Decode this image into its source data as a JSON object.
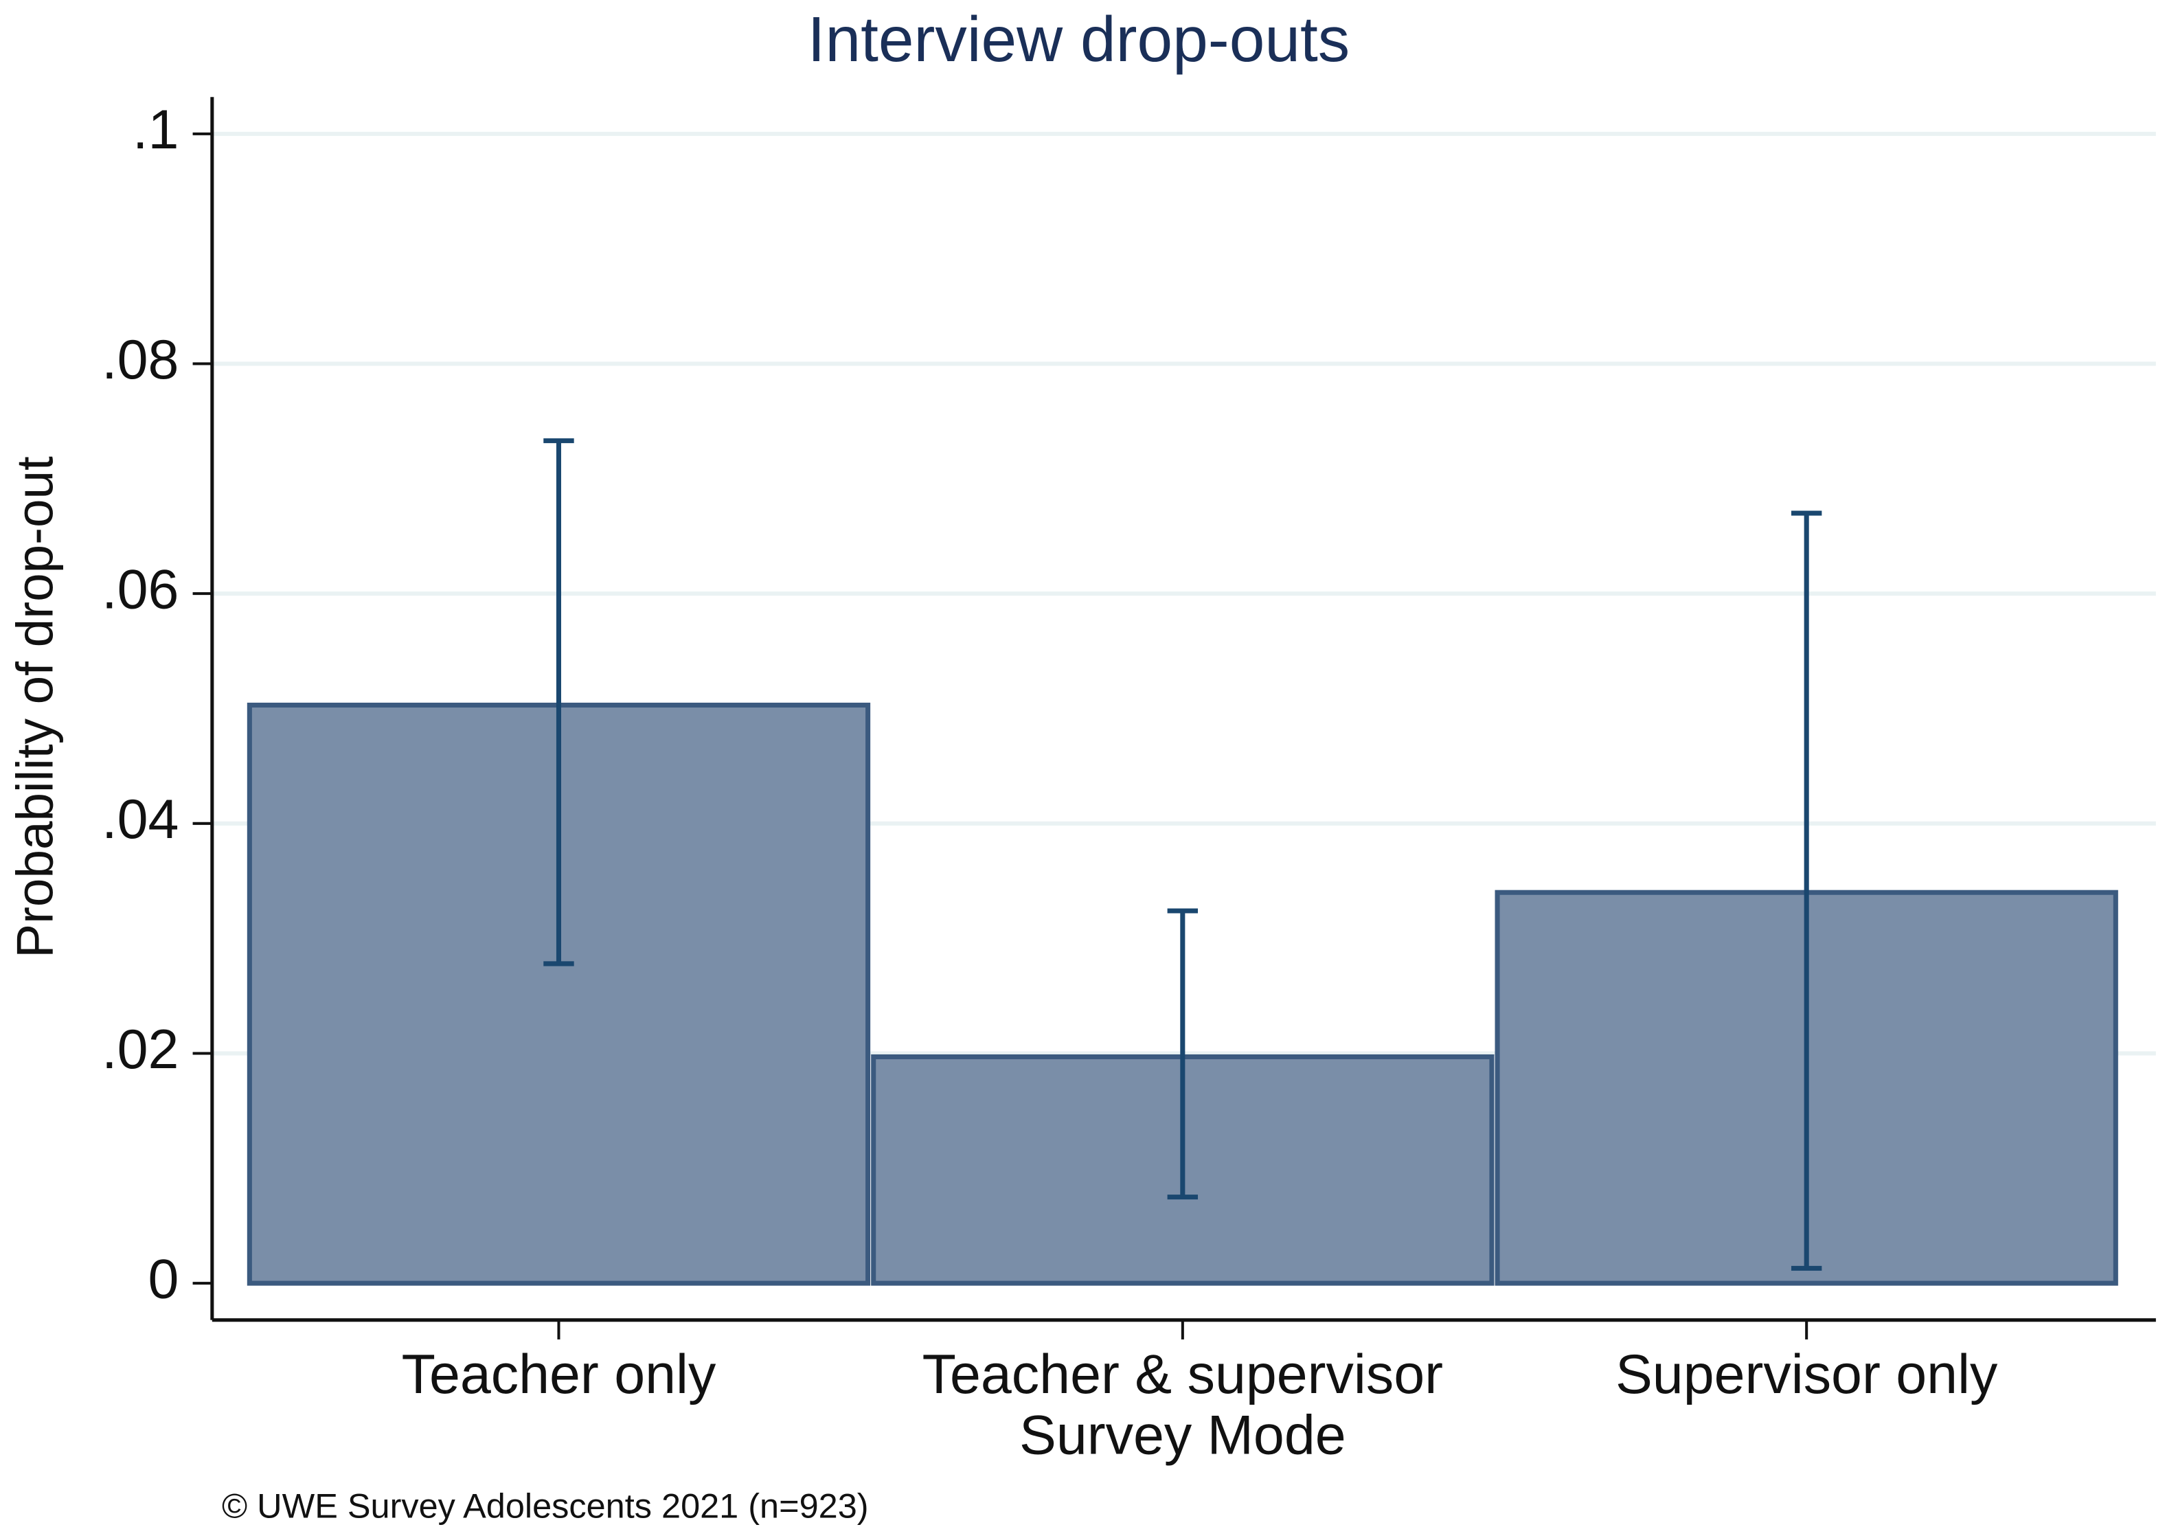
{
  "chart_data": {
    "type": "bar",
    "title": "Interview drop-outs",
    "x_label": "Survey Mode",
    "y_label": "Probability of drop-out",
    "caption": "© UWE Survey Adolescents 2021 (n=923)",
    "categories": [
      "Teacher only",
      "Teacher & supervisor",
      "Supervisor only"
    ],
    "values": [
      0.0503,
      0.0197,
      0.034
    ],
    "ci_low": [
      0.0278,
      0.0075,
      0.0013
    ],
    "ci_high": [
      0.0733,
      0.0324,
      0.067
    ],
    "color": "#7a8ea8",
    "edge_color": "#3b5a7f",
    "error_color": "#1a476f",
    "ylim": [
      -0.0032,
      0.1032
    ],
    "yticks": [
      {
        "value": 0,
        "label": "0"
      },
      {
        "value": 0.02,
        "label": ".02"
      },
      {
        "value": 0.04,
        "label": ".04"
      },
      {
        "value": 0.06,
        "label": ".06"
      },
      {
        "value": 0.08,
        "label": ".08"
      },
      {
        "value": 0.1,
        "label": ".1"
      }
    ],
    "grid": true
  }
}
